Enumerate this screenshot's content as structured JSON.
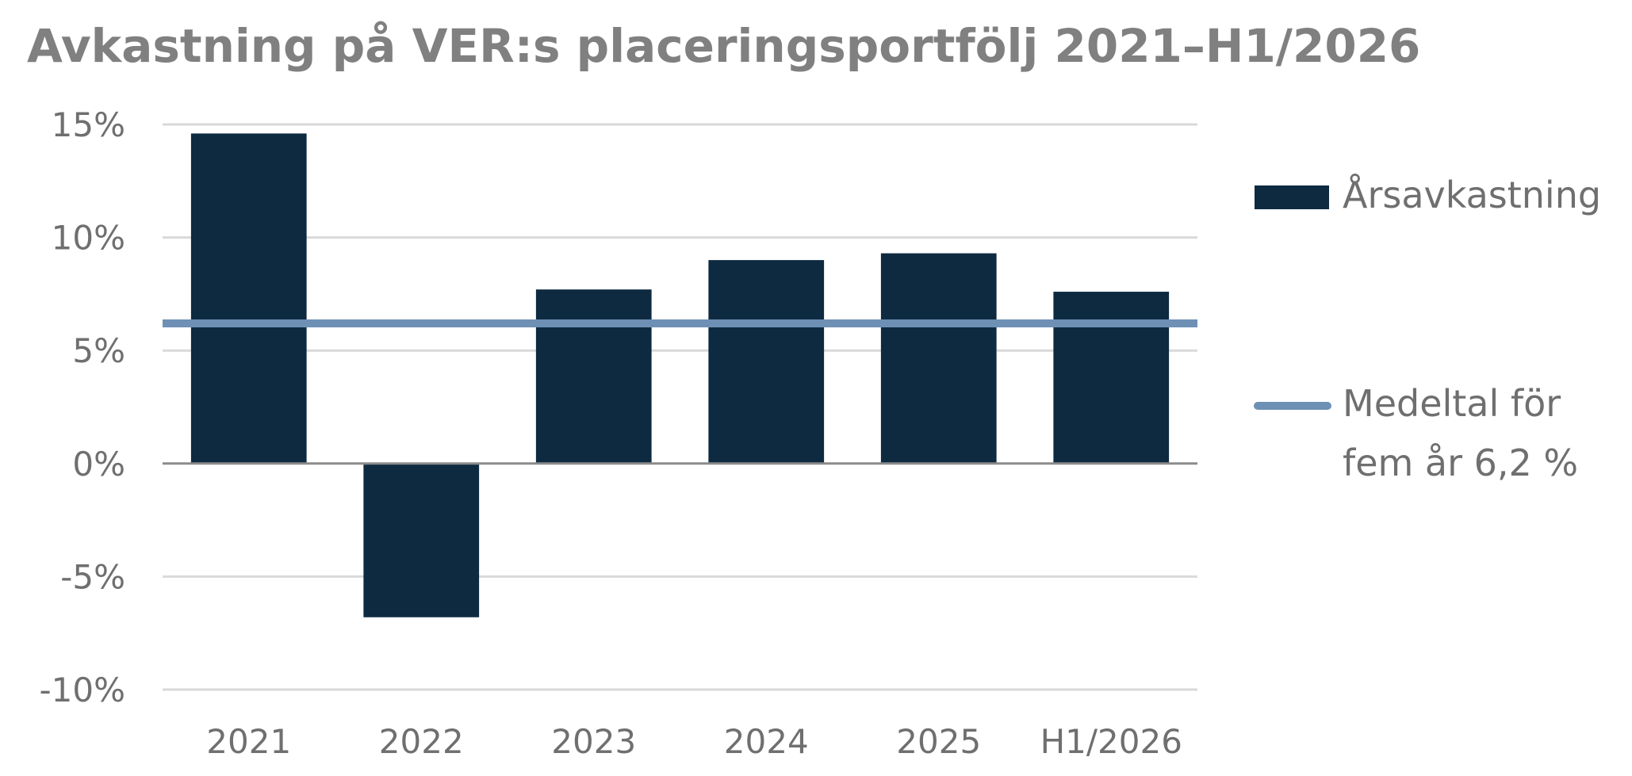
{
  "chart_data": {
    "type": "bar",
    "title": "Avkastning på VER:s placeringsportfölj 2021–H1/2026",
    "xlabel": "",
    "ylabel": "",
    "categories": [
      "2021",
      "2022",
      "2023",
      "2024",
      "2025",
      "H1/2026"
    ],
    "series": [
      {
        "name": "Årsavkastning",
        "values": [
          14.6,
          -6.8,
          7.7,
          9.0,
          9.3,
          7.6
        ],
        "color": "#0e2a40"
      }
    ],
    "reference_line": {
      "value": 6.2,
      "label_lines": [
        "Medeltal för",
        "fem år 6,2 %"
      ],
      "color": "#6e90b5"
    },
    "ylim": [
      -10,
      15
    ],
    "yticks": [
      15,
      10,
      5,
      0,
      -5,
      -10
    ],
    "ytick_labels": [
      "15%",
      "10%",
      "5%",
      "0%",
      "-5%",
      "-10%"
    ],
    "grid": true,
    "legend_position": "right",
    "colors": {
      "grid": "#d9d9d9",
      "zero_axis": "#8c8c8c",
      "text": "#6f6f6f",
      "title": "#808080"
    }
  }
}
